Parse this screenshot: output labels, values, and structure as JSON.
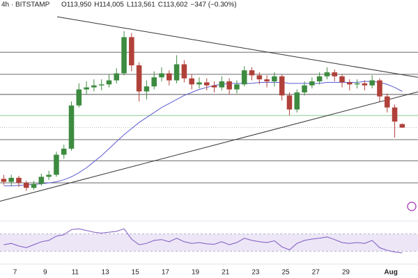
{
  "chart_data": {
    "type": "candlestick",
    "header": "4h · BITSTAMP",
    "ohlc_labels": [
      "O113,950",
      "H114,005",
      "L113,561",
      "C113,602",
      "−347 (−0.30%)"
    ],
    "x": [
      6.25,
      6.75,
      7.25,
      7.75,
      8.25,
      8.75,
      9.25,
      9.75,
      10.25,
      10.75,
      11.25,
      11.75,
      12.25,
      12.75,
      13.25,
      13.75,
      14.25,
      14.75,
      15.25,
      15.75,
      16.25,
      16.75,
      17.25,
      17.75,
      18.25,
      18.75,
      19.25,
      19.75,
      20.25,
      20.75,
      21.25,
      21.75,
      22.25,
      22.75,
      23.25,
      23.75,
      24.25,
      24.75,
      25.25,
      25.75,
      26.25,
      26.75,
      27.25,
      27.75,
      28.25,
      28.75,
      29.25,
      29.75,
      30.25,
      30.75,
      31.25,
      31.75,
      32.25,
      32.75
    ],
    "xlim": [
      6,
      33.8
    ],
    "xticks": [
      7,
      9,
      11,
      13,
      15,
      17,
      19,
      21,
      23,
      25,
      27,
      29,
      {
        "value": 32,
        "label": "Aug"
      }
    ],
    "ylim": [
      104300,
      126300
    ],
    "open": [
      108500,
      108200,
      108600,
      108100,
      107600,
      108000,
      108700,
      108900,
      110900,
      111500,
      115800,
      117400,
      117600,
      117800,
      117900,
      118300,
      119000,
      122600,
      119800,
      117200,
      117700,
      118600,
      119000,
      118300,
      119900,
      118500,
      117900,
      118100,
      117800,
      117600,
      118200,
      117400,
      117900,
      119300,
      118800,
      118400,
      118200,
      118700,
      116800,
      115400,
      117100,
      117800,
      118200,
      118700,
      119100,
      118700,
      118100,
      117900,
      118000,
      117800,
      118300,
      116700,
      115600,
      113950
    ],
    "high": [
      108900,
      108900,
      108800,
      108300,
      108300,
      109000,
      109300,
      111200,
      111900,
      116200,
      118000,
      118200,
      118400,
      118400,
      118900,
      119500,
      123200,
      123000,
      120100,
      118300,
      119200,
      119600,
      119300,
      120800,
      120300,
      118900,
      118600,
      118500,
      118200,
      118700,
      118500,
      118300,
      119700,
      119600,
      119100,
      118800,
      119100,
      118900,
      117100,
      117400,
      118200,
      118600,
      119100,
      119600,
      119400,
      118900,
      118400,
      118400,
      118300,
      118800,
      118500,
      117000,
      115900,
      114005
    ],
    "low": [
      107900,
      107800,
      107700,
      107300,
      107400,
      107800,
      108400,
      108700,
      110500,
      111300,
      115600,
      116900,
      117200,
      117300,
      117600,
      118000,
      118800,
      119200,
      116200,
      116400,
      117400,
      118200,
      117800,
      118000,
      118100,
      117400,
      117500,
      117300,
      117100,
      117300,
      116900,
      117000,
      117700,
      118300,
      117900,
      117600,
      117700,
      116300,
      114800,
      115100,
      116800,
      117500,
      117900,
      118400,
      118200,
      117600,
      117300,
      117500,
      117300,
      117500,
      116200,
      115100,
      112600,
      113561
    ],
    "close": [
      108200,
      108600,
      108100,
      107600,
      108000,
      108700,
      108900,
      110900,
      111500,
      115800,
      117400,
      117600,
      117800,
      117900,
      118300,
      119000,
      122600,
      119800,
      117200,
      117700,
      118600,
      119000,
      118300,
      119900,
      118500,
      117900,
      118100,
      117800,
      117600,
      118200,
      117400,
      117900,
      119300,
      118800,
      118400,
      118200,
      118700,
      116800,
      115400,
      117100,
      117800,
      118200,
      118700,
      119100,
      118700,
      118100,
      117900,
      118000,
      117800,
      118300,
      116700,
      115600,
      114200,
      113602
    ],
    "up_color": "#3d8b40",
    "down_color": "#b0413a",
    "ma": {
      "color": "#5a5ad0",
      "values": [
        107800,
        107800,
        107850,
        107900,
        107950,
        108000,
        108100,
        108200,
        108400,
        108700,
        109100,
        109600,
        110200,
        110800,
        111500,
        112200,
        112900,
        113500,
        114100,
        114600,
        115100,
        115600,
        116000,
        116400,
        116800,
        117100,
        117400,
        117600,
        117800,
        117900,
        118000,
        118000,
        118000,
        118000,
        118100,
        118100,
        118100,
        118100,
        118000,
        118000,
        118000,
        118000,
        118000,
        118100,
        118100,
        118100,
        118100,
        118100,
        118200,
        118200,
        118100,
        117900,
        117600,
        117200
      ]
    },
    "levels": [
      {
        "value": 121100,
        "color": "#555555"
      },
      {
        "value": 118900,
        "color": "#555555"
      },
      {
        "value": 116900,
        "color": "#555555"
      },
      {
        "value": 114800,
        "color": "#7cc47f"
      },
      {
        "value": 112400,
        "color": "#555555"
      },
      {
        "value": 110300,
        "color": "#555555"
      },
      {
        "value": 108100,
        "color": "#555555"
      }
    ],
    "trendlines": [
      {
        "x": [
          9.8,
          33.8
        ],
        "y": [
          124630,
          118600
        ],
        "color": "#333333"
      },
      {
        "x": [
          6,
          33.8
        ],
        "y": [
          106270,
          117160
        ],
        "color": "#333333"
      }
    ],
    "rsi": {
      "color": "#7e57c2",
      "ylim": [
        0,
        100
      ],
      "bands": [
        30,
        70
      ],
      "band_color": "#ece6f7",
      "values": [
        45,
        48,
        42,
        38,
        45,
        52,
        55,
        65,
        68,
        80,
        82,
        78,
        74,
        72,
        74,
        76,
        82,
        58,
        45,
        48,
        55,
        57,
        52,
        60,
        52,
        48,
        50,
        47,
        46,
        52,
        45,
        50,
        60,
        55,
        52,
        50,
        54,
        40,
        33,
        48,
        55,
        58,
        60,
        63,
        57,
        50,
        48,
        50,
        48,
        55,
        38,
        32,
        28,
        26
      ]
    }
  }
}
